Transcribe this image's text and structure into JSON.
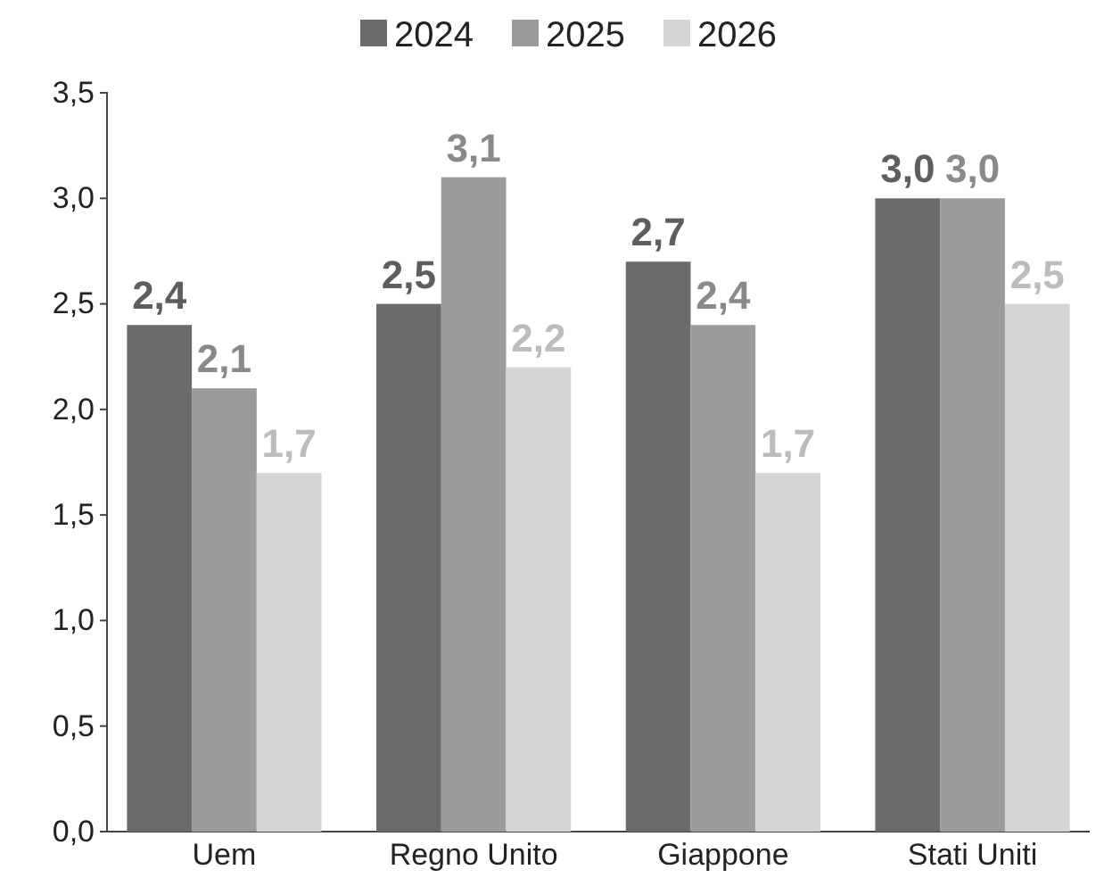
{
  "chart_data": {
    "type": "bar",
    "categories": [
      "Uem",
      "Regno Unito",
      "Giappone",
      "Stati Uniti"
    ],
    "series": [
      {
        "name": "2024",
        "color": "#6b6b6e",
        "values": [
          2.4,
          2.5,
          2.7,
          3.0
        ],
        "value_labels": [
          "2,4",
          "2,5",
          "2,7",
          "3,0"
        ]
      },
      {
        "name": "2025",
        "color": "#9b9b9d",
        "values": [
          2.1,
          3.1,
          2.4,
          3.0
        ],
        "value_labels": [
          "2,1",
          "3,1",
          "2,4",
          "3,0"
        ]
      },
      {
        "name": "2026",
        "color": "#d5d5d7",
        "values": [
          1.7,
          2.2,
          1.7,
          2.5
        ],
        "value_labels": [
          "1,7",
          "2,2",
          "1,7",
          "2,5"
        ]
      }
    ],
    "ylim": [
      0,
      3.5
    ],
    "yticks": [
      {
        "value": 0,
        "label": "0,0"
      },
      {
        "value": 0.5,
        "label": "0,5"
      },
      {
        "value": 1,
        "label": "1,0"
      },
      {
        "value": 1.5,
        "label": "1,5"
      },
      {
        "value": 2,
        "label": "2,0"
      },
      {
        "value": 2.5,
        "label": "2,5"
      },
      {
        "value": 3,
        "label": "3,0"
      },
      {
        "value": 3.5,
        "label": "3,5"
      }
    ],
    "grid": false,
    "legend": "top"
  }
}
